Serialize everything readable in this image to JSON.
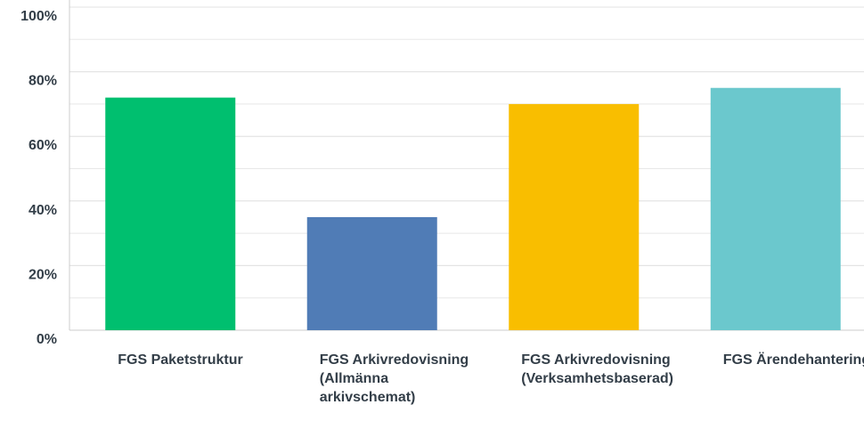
{
  "chart_data": {
    "type": "bar",
    "categories": [
      "FGS Paketstruktur",
      "FGS Arkivredovisning (Allmänna arkivschemat)",
      "FGS Arkivredovisning (Verksamhetsbaserad)",
      "FGS Ärendehantering"
    ],
    "values": [
      72,
      35,
      70,
      75
    ],
    "colors": [
      "#00bf6f",
      "#507cb6",
      "#f9be00",
      "#6bc8cd"
    ],
    "ylim": [
      0,
      100
    ],
    "yticks": [
      {
        "value": 0,
        "label": "0%"
      },
      {
        "value": 20,
        "label": "20%"
      },
      {
        "value": 40,
        "label": "40%"
      },
      {
        "value": 60,
        "label": "60%"
      },
      {
        "value": 80,
        "label": "80%"
      },
      {
        "value": 100,
        "label": "100%"
      }
    ],
    "minor_grid_step": 10,
    "grid": true
  }
}
